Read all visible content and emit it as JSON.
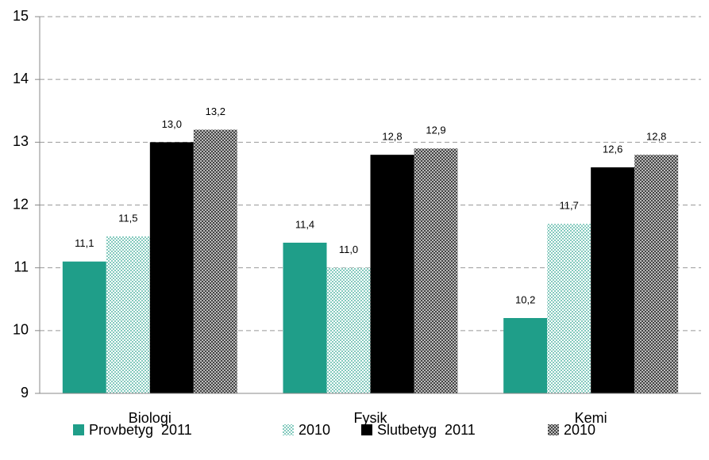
{
  "chart_data": {
    "type": "bar",
    "categories": [
      "Biologi",
      "Fysik",
      "Kemi"
    ],
    "series": [
      {
        "name": "Provbetyg  2011",
        "color": "#1f9e89",
        "pattern": "solid",
        "values": [
          11.1,
          11.4,
          10.2
        ],
        "value_labels": [
          "11,1",
          "11,4",
          "10,2"
        ]
      },
      {
        "name": "2010",
        "color": "#1f9e89",
        "pattern": "dots",
        "values": [
          11.5,
          11.0,
          11.7
        ],
        "value_labels": [
          "11,5",
          "11,0",
          "11,7"
        ]
      },
      {
        "name": "Slutbetyg  2011",
        "color": "#000000",
        "pattern": "solid",
        "values": [
          13.0,
          12.8,
          12.6
        ],
        "value_labels": [
          "13,0",
          "12,8",
          "12,6"
        ]
      },
      {
        "name": "2010",
        "color": "#555555",
        "pattern": "checker",
        "values": [
          13.2,
          12.9,
          12.8
        ],
        "value_labels": [
          "13,2",
          "12,9",
          "12,8"
        ]
      }
    ],
    "ylim": [
      9,
      15
    ],
    "yticks": [
      9,
      10,
      11,
      12,
      13,
      14,
      15
    ],
    "grid": true,
    "legend": "bottom"
  }
}
